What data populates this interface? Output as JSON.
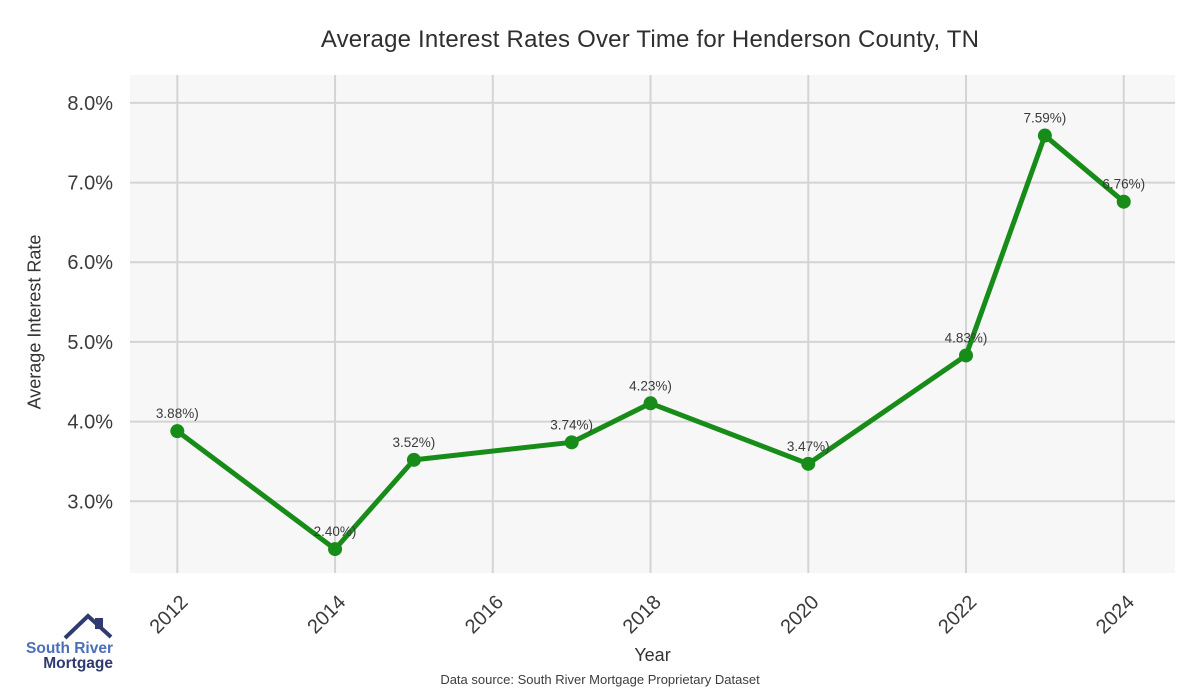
{
  "title": "Average Interest Rates Over Time for Henderson County, TN",
  "chart_data": {
    "type": "line",
    "title": "Average Interest Rates Over Time for Henderson County, TN",
    "xlabel": "Year",
    "ylabel": "Average Interest Rate",
    "x": [
      2012,
      2014,
      2015,
      2017,
      2018,
      2020,
      2022,
      2023,
      2024
    ],
    "values": [
      3.88,
      2.4,
      3.52,
      3.74,
      4.23,
      3.47,
      4.83,
      7.59,
      6.76
    ],
    "point_labels": [
      "3.88%)",
      "2.40%)",
      "3.52%)",
      "3.74%)",
      "4.23%)",
      "3.47%)",
      "4.83%)",
      "7.59%)",
      "6.76%)"
    ],
    "x_ticks": [
      2012,
      2014,
      2016,
      2018,
      2020,
      2022,
      2024
    ],
    "x_tick_labels": [
      "2012",
      "2014",
      "2016",
      "2018",
      "2020",
      "2022",
      "2024"
    ],
    "y_ticks": [
      3,
      4,
      5,
      6,
      7,
      8
    ],
    "y_tick_labels": [
      "3.0%",
      "4.0%",
      "5.0%",
      "6.0%",
      "7.0%",
      "8.0%"
    ],
    "xlim": [
      2011.4,
      2024.65
    ],
    "ylim": [
      2.1,
      8.35
    ],
    "grid": true,
    "legend_position": "none",
    "line_color": "#188c18",
    "marker_color": "#188c18"
  },
  "colors": {
    "plot_background": "#f7f7f7",
    "gridline": "#d4d4d4",
    "tick_text": "#3b3b3b",
    "title_text": "#2f2f2f",
    "logo_blue": "#4a6fb8",
    "logo_navy": "#2e3a70"
  },
  "footer": {
    "source": "Data source: South River Mortgage Proprietary Dataset"
  },
  "logo": {
    "line1": "South River",
    "line2": "Mortgage"
  }
}
